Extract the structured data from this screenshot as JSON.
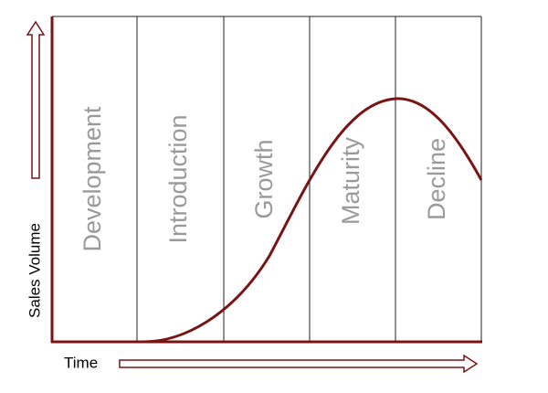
{
  "axes": {
    "y_label": "Sales Volume",
    "x_label": "Time"
  },
  "stages": [
    {
      "label": "Development"
    },
    {
      "label": "Introduction"
    },
    {
      "label": "Growth"
    },
    {
      "label": "Maturity"
    },
    {
      "label": "Decline"
    }
  ]
}
